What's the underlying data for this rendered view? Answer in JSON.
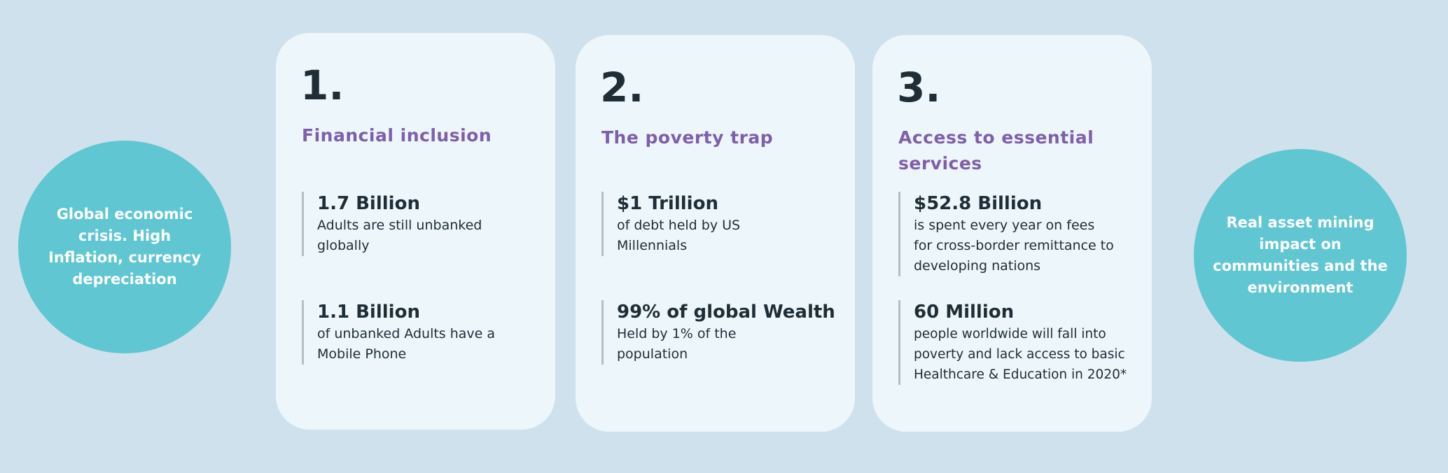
{
  "left_circle": {
    "text": "Global economic crisis. High Inflation, currency depreciation"
  },
  "right_circle": {
    "text": "Real asset  mining impact on communities and the environment"
  },
  "cards": [
    {
      "number": "1.",
      "title": "Financial inclusion",
      "stats": [
        {
          "value": "1.7 Billion",
          "description": "Adults are still unbanked globally"
        },
        {
          "value": "1.1 Billion",
          "description": "of unbanked Adults have a Mobile Phone"
        }
      ]
    },
    {
      "number": "2.",
      "title": "The poverty trap",
      "stats": [
        {
          "value": "$1 Trillion",
          "description": "of debt held by US Millennials"
        },
        {
          "value": "99% of global Wealth",
          "description": "Held by 1% of the population"
        }
      ]
    },
    {
      "number": "3.",
      "title": "Access to essential services",
      "stats": [
        {
          "value": "$52.8 Billion",
          "description": "is spent every year on fees for cross-border remittance to developing nations"
        },
        {
          "value": "60 Million",
          "description": "people worldwide will fall into poverty and lack access to basic Healthcare & Education in 2020*"
        }
      ]
    }
  ],
  "colors": {
    "background": "#cfe1ec",
    "card": "#ecf6fb",
    "circle": "#5fc6d2",
    "accent": "#7f5fab",
    "text": "#1f2d36"
  }
}
